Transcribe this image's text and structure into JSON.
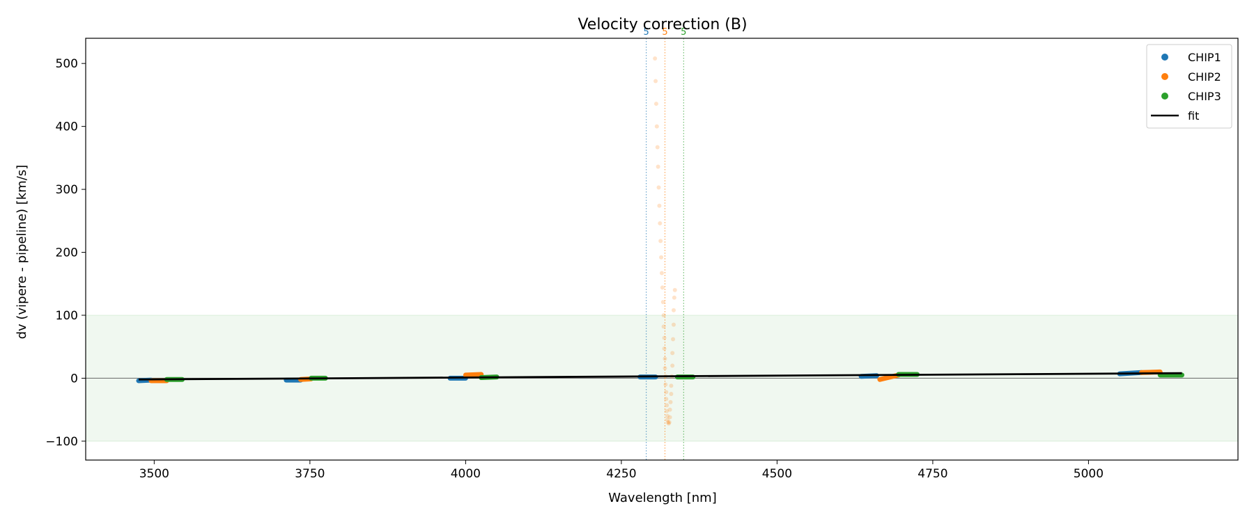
{
  "chart_data": {
    "type": "scatter",
    "title": "Velocity correction (B)",
    "xlabel": "Wavelength [nm]",
    "ylabel": "dv (vipere - pipeline) [km/s]",
    "xlim": [
      3390,
      5240
    ],
    "ylim": [
      -130,
      540
    ],
    "xticks": [
      3500,
      3750,
      4000,
      4250,
      4500,
      4750,
      5000
    ],
    "yticks": [
      -100,
      0,
      100,
      200,
      300,
      400,
      500
    ],
    "xtick_labels": [
      "3500",
      "3750",
      "4000",
      "4250",
      "4500",
      "4750",
      "5000"
    ],
    "ytick_labels": [
      "−100",
      "0",
      "100",
      "200",
      "300",
      "400",
      "500"
    ],
    "legend": {
      "placement": "top-right",
      "entries": [
        "CHIP1",
        "CHIP2",
        "CHIP3",
        "fit"
      ]
    },
    "band": {
      "y0": -100,
      "y1": 100,
      "color": "#2ca02c"
    },
    "zero_line": 0,
    "colors": {
      "CHIP1": "#1f77b4",
      "CHIP2": "#ff7f0e",
      "CHIP3": "#2ca02c",
      "fit": "#000000"
    },
    "vlines": [
      {
        "x": 4290,
        "label": "5",
        "color": "#1f77b4"
      },
      {
        "x": 4320,
        "label": "5",
        "color": "#ff7f0e"
      },
      {
        "x": 4350,
        "label": "5",
        "color": "#2ca02c"
      }
    ],
    "series": [
      {
        "name": "CHIP1",
        "segments": [
          {
            "x0": 3475,
            "x1": 3495,
            "y0": -4,
            "y1": -3
          },
          {
            "x0": 3712,
            "x1": 3735,
            "y0": -3,
            "y1": -3
          },
          {
            "x0": 3975,
            "x1": 4000,
            "y0": 0,
            "y1": 0
          },
          {
            "x0": 4280,
            "x1": 4305,
            "y0": 2,
            "y1": 2
          },
          {
            "x0": 4635,
            "x1": 4660,
            "y0": 3,
            "y1": 4
          },
          {
            "x0": 5050,
            "x1": 5085,
            "y0": 7,
            "y1": 9
          }
        ]
      },
      {
        "name": "CHIP2",
        "segments": [
          {
            "x0": 3495,
            "x1": 3520,
            "y0": -4,
            "y1": -4
          },
          {
            "x0": 3735,
            "x1": 3752,
            "y0": -2,
            "y1": -1
          },
          {
            "x0": 4000,
            "x1": 4025,
            "y0": 5,
            "y1": 6
          },
          {
            "x0": 4665,
            "x1": 4695,
            "y0": -2,
            "y1": 5
          },
          {
            "x0": 5085,
            "x1": 5115,
            "y0": 9,
            "y1": 10
          }
        ]
      },
      {
        "name": "CHIP3",
        "segments": [
          {
            "x0": 3520,
            "x1": 3545,
            "y0": -2,
            "y1": -2
          },
          {
            "x0": 3752,
            "x1": 3775,
            "y0": 0,
            "y1": 0
          },
          {
            "x0": 4025,
            "x1": 4050,
            "y0": 1,
            "y1": 2
          },
          {
            "x0": 4340,
            "x1": 4365,
            "y0": 2,
            "y1": 2
          },
          {
            "x0": 4695,
            "x1": 4725,
            "y0": 6,
            "y1": 6
          },
          {
            "x0": 5115,
            "x1": 5150,
            "y0": 5,
            "y1": 5
          }
        ]
      }
    ],
    "outliers": {
      "color": "#ff7f0e",
      "points": [
        [
          4304,
          508
        ],
        [
          4305,
          472
        ],
        [
          4306,
          436
        ],
        [
          4307,
          400
        ],
        [
          4308,
          367
        ],
        [
          4309,
          336
        ],
        [
          4310,
          303
        ],
        [
          4311,
          274
        ],
        [
          4312,
          246
        ],
        [
          4313,
          218
        ],
        [
          4314,
          192
        ],
        [
          4315,
          167
        ],
        [
          4316,
          144
        ],
        [
          4317,
          121
        ],
        [
          4318,
          100
        ],
        [
          4318,
          82
        ],
        [
          4319,
          64
        ],
        [
          4319,
          47
        ],
        [
          4320,
          31
        ],
        [
          4320,
          16
        ],
        [
          4321,
          3
        ],
        [
          4321,
          -10
        ],
        [
          4322,
          -22
        ],
        [
          4322,
          -33
        ],
        [
          4323,
          -43
        ],
        [
          4323,
          -52
        ],
        [
          4324,
          -60
        ],
        [
          4324,
          -66
        ],
        [
          4325,
          -70
        ],
        [
          4326,
          -72
        ],
        [
          4327,
          -70
        ],
        [
          4328,
          -62
        ],
        [
          4328,
          -50
        ],
        [
          4329,
          -38
        ],
        [
          4330,
          -25
        ],
        [
          4330,
          -12
        ],
        [
          4331,
          3
        ],
        [
          4332,
          20
        ],
        [
          4332,
          40
        ],
        [
          4333,
          62
        ],
        [
          4334,
          85
        ],
        [
          4334,
          108
        ],
        [
          4335,
          128
        ],
        [
          4336,
          140
        ]
      ]
    },
    "fit": {
      "x": [
        3475,
        5150
      ],
      "y": [
        -2,
        8
      ]
    }
  }
}
